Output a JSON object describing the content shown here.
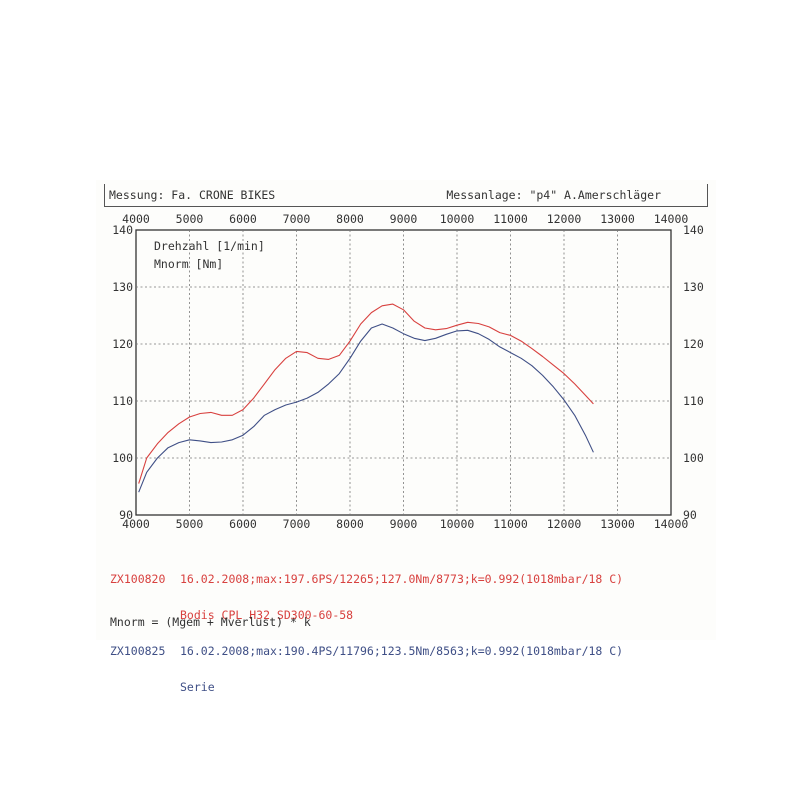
{
  "header": {
    "left": "Messung: Fa. CRONE BIKES",
    "right": "Messanlage: \"p4\" A.Amerschläger"
  },
  "chart_data": {
    "type": "line",
    "title": "",
    "plot_labels": [
      "Drehzahl [1/min]",
      "Mnorm [Nm]"
    ],
    "xlim": [
      4000,
      14000
    ],
    "ylim": [
      90,
      140
    ],
    "x_ticks": [
      4000,
      5000,
      6000,
      7000,
      8000,
      9000,
      10000,
      11000,
      12000,
      13000,
      14000
    ],
    "y_ticks": [
      90,
      100,
      110,
      120,
      130,
      140
    ],
    "grid": true,
    "series": [
      {
        "name": "ZX100820",
        "color": "#d8413f",
        "x": [
          4050,
          4200,
          4400,
          4600,
          4800,
          5000,
          5200,
          5400,
          5600,
          5800,
          6000,
          6200,
          6400,
          6600,
          6800,
          7000,
          7200,
          7400,
          7600,
          7800,
          8000,
          8200,
          8400,
          8600,
          8800,
          9000,
          9200,
          9400,
          9600,
          9800,
          10000,
          10200,
          10400,
          10600,
          10800,
          11000,
          11200,
          11400,
          11600,
          11800,
          12000,
          12200,
          12400,
          12550
        ],
        "y": [
          95.5,
          100,
          102.5,
          104.5,
          106,
          107.2,
          107.8,
          108,
          107.5,
          107.5,
          108.5,
          110.5,
          113,
          115.5,
          117.5,
          118.7,
          118.5,
          117.5,
          117.3,
          118,
          120.5,
          123.5,
          125.5,
          126.7,
          127.0,
          126.0,
          124.0,
          122.8,
          122.5,
          122.7,
          123.3,
          123.8,
          123.6,
          123,
          122,
          121.5,
          120.5,
          119.2,
          117.8,
          116.3,
          114.8,
          113,
          111,
          109.5
        ]
      },
      {
        "name": "ZX100825",
        "color": "#3f4f86",
        "x": [
          4050,
          4200,
          4400,
          4600,
          4800,
          5000,
          5200,
          5400,
          5600,
          5800,
          6000,
          6200,
          6400,
          6600,
          6800,
          7000,
          7200,
          7400,
          7600,
          7800,
          8000,
          8200,
          8400,
          8600,
          8800,
          9000,
          9200,
          9400,
          9600,
          9800,
          10000,
          10200,
          10400,
          10600,
          10800,
          11000,
          11200,
          11400,
          11600,
          11800,
          12000,
          12200,
          12400,
          12550
        ],
        "y": [
          94,
          97.5,
          100,
          101.8,
          102.7,
          103.2,
          103,
          102.7,
          102.8,
          103.2,
          104,
          105.5,
          107.5,
          108.5,
          109.3,
          109.8,
          110.5,
          111.5,
          113,
          114.8,
          117.5,
          120.5,
          122.8,
          123.5,
          122.8,
          121.8,
          121.0,
          120.6,
          121,
          121.7,
          122.3,
          122.4,
          121.8,
          120.8,
          119.5,
          118.5,
          117.5,
          116.2,
          114.5,
          112.5,
          110.2,
          107.5,
          104,
          101
        ]
      }
    ]
  },
  "legend": {
    "entries": [
      {
        "id": "ZX100820",
        "line1": "16.02.2008;max:197.6PS/12265;127.0Nm/8773;k=0.992(1018mbar/18 C)",
        "line2": "Bodis CPL H32 SD300-60-58",
        "color": "#d8413f"
      },
      {
        "id": "ZX100825",
        "line1": "16.02.2008;max:190.4PS/11796;123.5Nm/8563;k=0.992(1018mbar/18 C)",
        "line2": "Serie",
        "color": "#3f4f86"
      }
    ]
  },
  "formula": "Mnorm = (Mgem + Mverlust) * k"
}
